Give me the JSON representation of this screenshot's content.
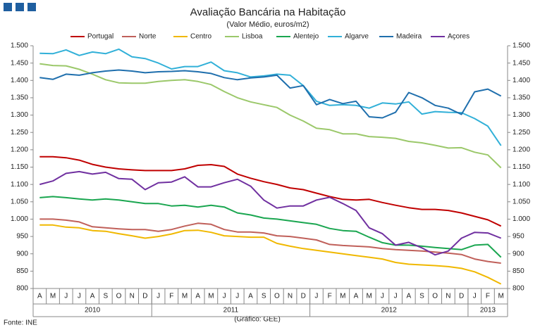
{
  "chart_data": {
    "type": "line",
    "title": "Avaliação Bancária na Habitação",
    "subtitle": "(Valor Médio, euros/m2)",
    "source": "Fonte: INE",
    "credit": "(Gráfico: GEE)",
    "categories": [
      "A",
      "M",
      "J",
      "J",
      "A",
      "S",
      "O",
      "N",
      "D",
      "J",
      "F",
      "M",
      "A",
      "M",
      "J",
      "J",
      "A",
      "S",
      "O",
      "N",
      "D",
      "J",
      "F",
      "M",
      "A",
      "M",
      "J",
      "J",
      "A",
      "S",
      "O",
      "N",
      "D",
      "J",
      "F",
      "M"
    ],
    "years": [
      "2010",
      "2011",
      "2012",
      "2013"
    ],
    "ylim": [
      800,
      1500
    ],
    "yticks": [
      800,
      850,
      900,
      950,
      {
        "value": 1000,
        "label": "1.000"
      },
      {
        "value": 1050,
        "label": "1.050"
      },
      {
        "value": 1100,
        "label": "1.100"
      },
      {
        "value": 1150,
        "label": "1.150"
      },
      {
        "value": 1200,
        "label": "1.200"
      },
      {
        "value": 1250,
        "label": "1.250"
      },
      {
        "value": 1300,
        "label": "1.300"
      },
      {
        "value": 1350,
        "label": "1.350"
      },
      {
        "value": 1400,
        "label": "1.400"
      },
      {
        "value": 1450,
        "label": "1.450"
      },
      {
        "value": 1500,
        "label": "1.500"
      }
    ],
    "y2lim": [
      800,
      1500
    ],
    "y2ticks": [
      800,
      850,
      900,
      950,
      {
        "value": 1000,
        "label": "1.000"
      },
      {
        "value": 1050,
        "label": "1.050"
      },
      {
        "value": 1100,
        "label": "1.100"
      },
      {
        "value": 1150,
        "label": "1.150"
      },
      {
        "value": 1200,
        "label": "1.200"
      },
      {
        "value": 1250,
        "label": "1.250"
      },
      {
        "value": 1300,
        "label": "1.300"
      },
      {
        "value": 1350,
        "label": "1.350"
      },
      {
        "value": 1400,
        "label": "1.400"
      },
      {
        "value": 1450,
        "label": "1.450"
      },
      {
        "value": 1500,
        "label": "1.500"
      }
    ],
    "grid": false,
    "legend": "top",
    "series": [
      {
        "name": "Portugal",
        "color": "#c00000",
        "values": [
          1180,
          1180,
          1177,
          1170,
          1158,
          1150,
          1145,
          1142,
          1140,
          1140,
          1140,
          1145,
          1155,
          1157,
          1152,
          1130,
          1118,
          1108,
          1100,
          1090,
          1085,
          1075,
          1065,
          1057,
          1055,
          1057,
          1048,
          1040,
          1033,
          1028,
          1028,
          1025,
          1018,
          1008,
          998,
          980
        ]
      },
      {
        "name": "Norte",
        "color": "#c0605a",
        "values": [
          1000,
          1000,
          997,
          992,
          978,
          975,
          972,
          970,
          970,
          965,
          970,
          980,
          988,
          985,
          970,
          963,
          963,
          960,
          952,
          950,
          945,
          940,
          927,
          924,
          922,
          920,
          915,
          912,
          910,
          908,
          905,
          902,
          898,
          885,
          878,
          873
        ]
      },
      {
        "name": "Centro",
        "color": "#f0b800",
        "values": [
          983,
          983,
          977,
          975,
          967,
          965,
          958,
          952,
          945,
          950,
          957,
          967,
          968,
          962,
          952,
          950,
          948,
          948,
          930,
          922,
          915,
          910,
          905,
          900,
          895,
          890,
          885,
          875,
          870,
          868,
          866,
          863,
          858,
          848,
          832,
          813
        ]
      },
      {
        "name": "Lisboa",
        "color": "#9bc86a",
        "values": [
          1448,
          1443,
          1442,
          1432,
          1418,
          1402,
          1393,
          1392,
          1392,
          1397,
          1400,
          1402,
          1397,
          1388,
          1368,
          1350,
          1338,
          1330,
          1322,
          1300,
          1283,
          1262,
          1258,
          1246,
          1246,
          1238,
          1236,
          1233,
          1224,
          1220,
          1213,
          1205,
          1206,
          1193,
          1185,
          1148
        ]
      },
      {
        "name": "Alentejo",
        "color": "#1aa650",
        "values": [
          1062,
          1065,
          1062,
          1058,
          1055,
          1058,
          1055,
          1050,
          1045,
          1045,
          1038,
          1040,
          1035,
          1040,
          1035,
          1018,
          1012,
          1003,
          1000,
          995,
          990,
          985,
          973,
          967,
          965,
          948,
          932,
          925,
          925,
          922,
          918,
          915,
          912,
          925,
          927,
          890
        ]
      },
      {
        "name": "Algarve",
        "color": "#31b0d8",
        "values": [
          1478,
          1477,
          1488,
          1472,
          1482,
          1477,
          1490,
          1468,
          1463,
          1450,
          1433,
          1440,
          1440,
          1453,
          1428,
          1422,
          1410,
          1413,
          1418,
          1415,
          1385,
          1340,
          1328,
          1330,
          1328,
          1320,
          1335,
          1332,
          1338,
          1303,
          1310,
          1308,
          1307,
          1290,
          1268,
          1212
        ]
      },
      {
        "name": "Madeira",
        "color": "#1f6fad",
        "values": [
          1408,
          1403,
          1418,
          1415,
          1422,
          1427,
          1430,
          1427,
          1422,
          1425,
          1426,
          1428,
          1425,
          1420,
          1408,
          1402,
          1407,
          1410,
          1415,
          1378,
          1385,
          1330,
          1345,
          1333,
          1340,
          1295,
          1292,
          1308,
          1365,
          1350,
          1328,
          1320,
          1302,
          1367,
          1375,
          1355
        ]
      },
      {
        "name": "Açores",
        "color": "#7030a0",
        "values": [
          1100,
          1110,
          1132,
          1137,
          1130,
          1135,
          1117,
          1115,
          1085,
          1105,
          1107,
          1122,
          1093,
          1093,
          1105,
          1115,
          1095,
          1055,
          1032,
          1038,
          1038,
          1055,
          1063,
          1045,
          1025,
          975,
          958,
          925,
          933,
          917,
          897,
          908,
          945,
          962,
          960,
          945
        ]
      }
    ]
  }
}
